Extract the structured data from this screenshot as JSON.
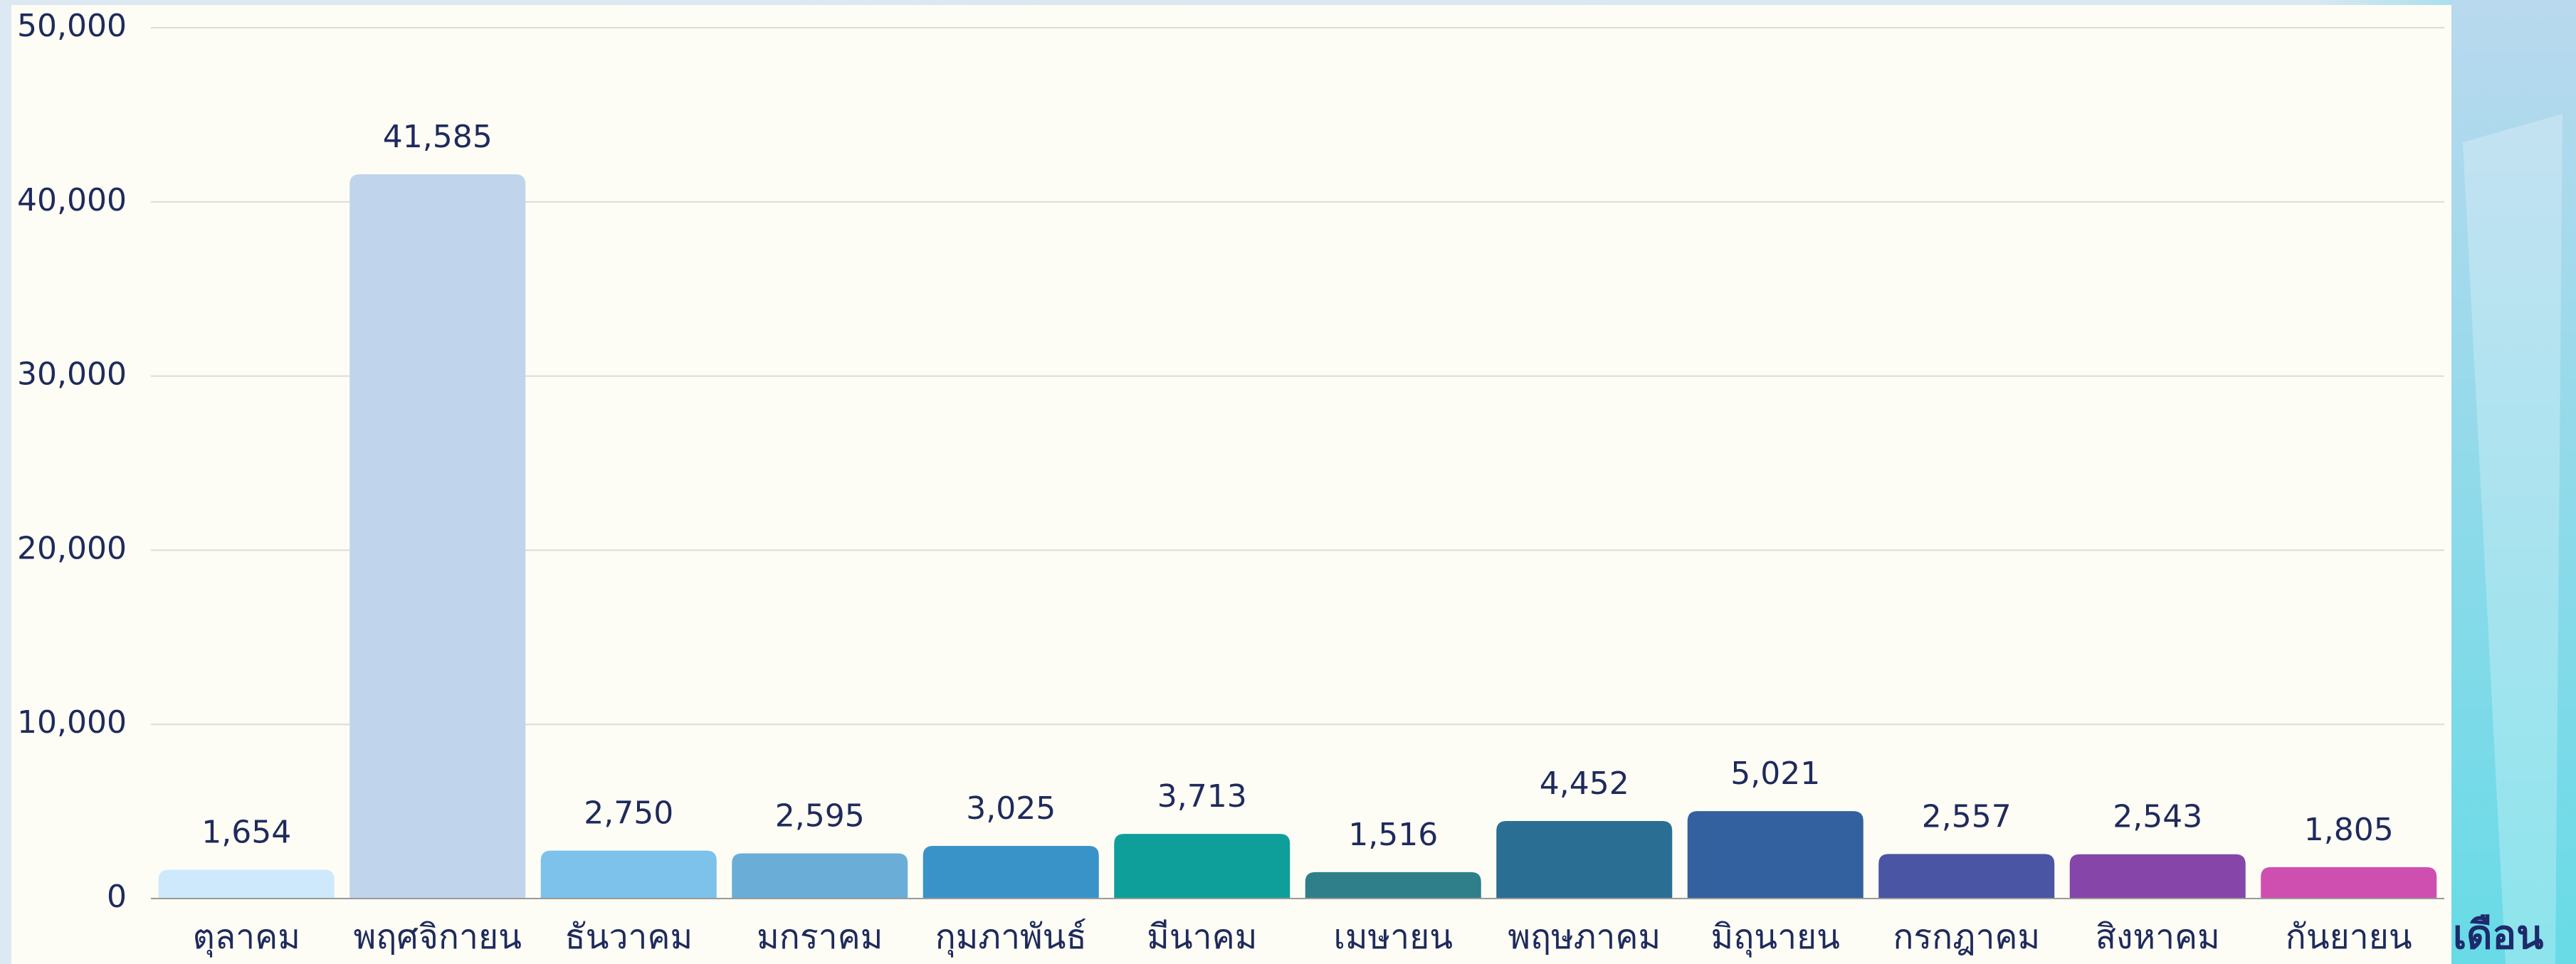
{
  "chart_data": {
    "type": "bar",
    "x_label": "เดือน",
    "categories": [
      "ตุลาคม",
      "พฤศจิกายน",
      "ธันวาคม",
      "มกราคม",
      "กุมภาพันธ์",
      "มีนาคม",
      "เมษายน",
      "พฤษภาคม",
      "มิถุนายน",
      "กรกฎาคม",
      "สิงหาคม",
      "กันยายน"
    ],
    "values": [
      1654,
      41585,
      2750,
      2595,
      3025,
      3713,
      1516,
      4452,
      5021,
      2557,
      2543,
      1805
    ],
    "value_labels": [
      "1,654",
      "41,585",
      "2,750",
      "2,595",
      "3,025",
      "3,713",
      "1,516",
      "4,452",
      "5,021",
      "2,557",
      "2,543",
      "1,805"
    ],
    "colors": [
      "#cde9fb",
      "#c0d4ec",
      "#7cc2ea",
      "#6aaed8",
      "#3a93c8",
      "#0f9f9a",
      "#2f7f8a",
      "#2a6f93",
      "#33609e",
      "#4a55a3",
      "#8645a8",
      "#cf4fb0"
    ],
    "ylim": [
      0,
      50000
    ],
    "yticks": [
      {
        "value": 0,
        "label": "0"
      },
      {
        "value": 10000,
        "label": "10,000"
      },
      {
        "value": 20000,
        "label": "20,000"
      },
      {
        "value": 30000,
        "label": "30,000"
      },
      {
        "value": 40000,
        "label": "40,000"
      },
      {
        "value": 50000,
        "label": "50,000"
      }
    ],
    "grid": true
  }
}
